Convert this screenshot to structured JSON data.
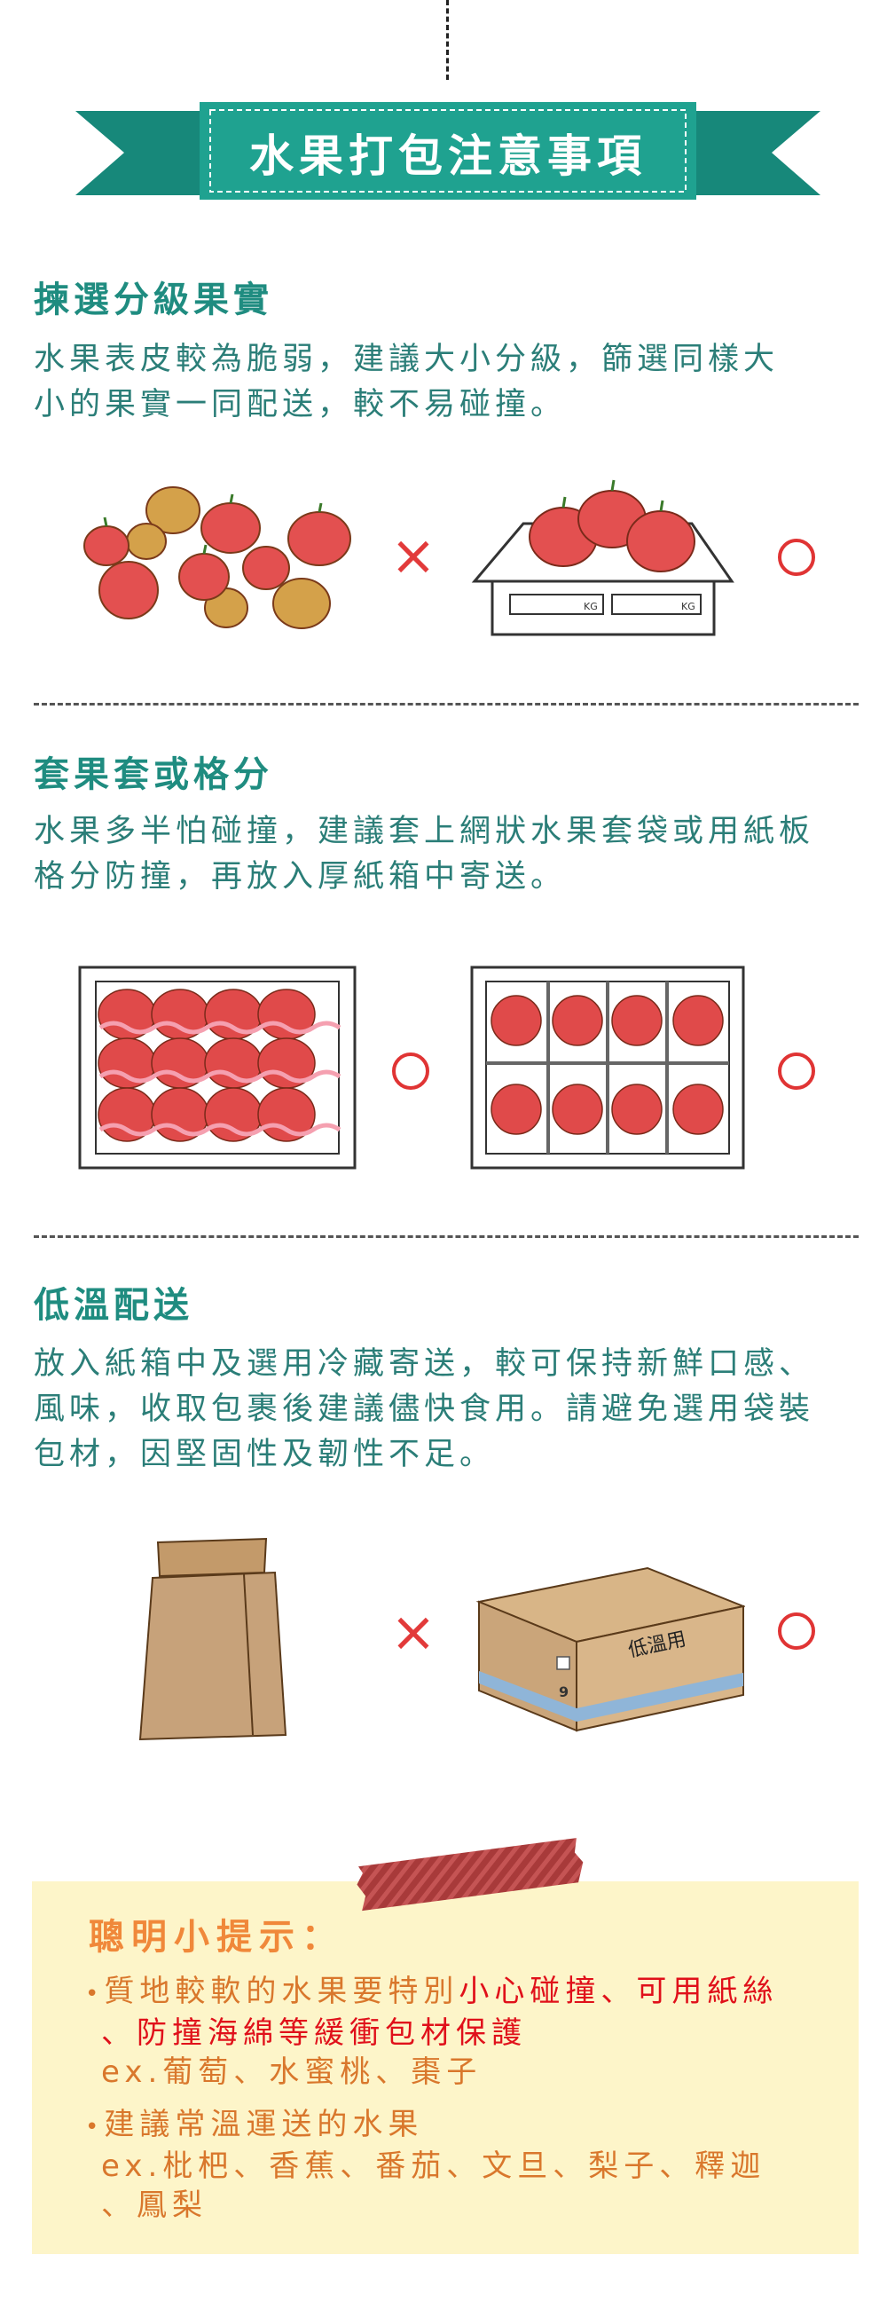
{
  "banner": {
    "title": "水果打包注意事項",
    "color": "#1e9a8a"
  },
  "sections": [
    {
      "title": "揀選分級果實",
      "body_lines": [
        "水果表皮較為脆弱，建議大小分級，篩選同樣大",
        "小的果實一同配送，較不易碰撞。"
      ],
      "marks": [
        "×",
        "○"
      ],
      "box_labels": [
        "KG",
        "KG"
      ]
    },
    {
      "title": "套果套或格分",
      "body_lines": [
        "水果多半怕碰撞，建議套上網狀水果套袋或用紙板",
        "格分防撞，再放入厚紙箱中寄送。"
      ],
      "marks": [
        "○",
        "○"
      ]
    },
    {
      "title": "低溫配送",
      "body_lines": [
        "放入紙箱中及選用冷藏寄送，較可保持新鮮口感、",
        "風味，收取包裹後建議儘快食用。請避免選用袋裝",
        "包材，因堅固性及韌性不足。"
      ],
      "marks": [
        "×",
        "○"
      ],
      "box_label": "低溫用",
      "box_number": "9"
    }
  ],
  "tips": {
    "title": "聰明小提示：",
    "item1_prefix": "質地較軟的水果要特別",
    "item1_red_1": "小心碰撞、可用紙絲",
    "item1_red_2": "、防撞海綿等緩衝包材保護",
    "item1_ex": "ex.葡萄、水蜜桃、棗子",
    "item2": "建議常溫運送的水果",
    "item2_ex_1": "ex.枇杷、香蕉、番茄、文旦、梨子、釋迦",
    "item2_ex_2": "、鳳梨",
    "bullet": "•"
  }
}
